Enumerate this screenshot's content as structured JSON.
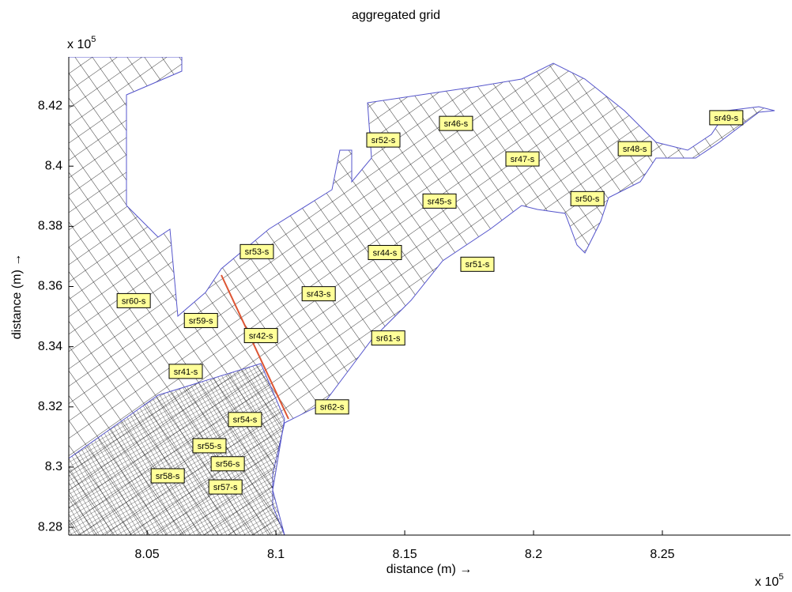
{
  "chart_data": {
    "type": "annotated-grid",
    "title": "aggregated grid",
    "xlabel": "distance (m) →",
    "ylabel": "distance (m) →",
    "x_exponent": {
      "base": "x 10",
      "exponent": "5"
    },
    "y_exponent": {
      "base": "x 10",
      "exponent": "5"
    },
    "xlim": [
      8.0196,
      8.2997
    ],
    "xticks": [
      8.05,
      8.1,
      8.15,
      8.2,
      8.25
    ],
    "ylim": [
      8.2774,
      8.4363
    ],
    "yticks": [
      8.28,
      8.3,
      8.32,
      8.34,
      8.36,
      8.38,
      8.4,
      8.42
    ],
    "label_color": "#ffff99",
    "mesh_color": "#5555cc",
    "section_color": "#dd5533",
    "annotations": [
      {
        "text": "sr49-s",
        "x": 8.2748,
        "y": 8.4161
      },
      {
        "text": "sr46-s",
        "x": 8.1699,
        "y": 8.4142
      },
      {
        "text": "sr52-s",
        "x": 8.1417,
        "y": 8.4087
      },
      {
        "text": "sr48-s",
        "x": 8.2393,
        "y": 8.4058
      },
      {
        "text": "sr47-s",
        "x": 8.1957,
        "y": 8.4024
      },
      {
        "text": "sr45-s",
        "x": 8.1635,
        "y": 8.3884
      },
      {
        "text": "sr50-s",
        "x": 8.2209,
        "y": 8.3892
      },
      {
        "text": "sr53-s",
        "x": 8.0926,
        "y": 8.3716
      },
      {
        "text": "sr44-s",
        "x": 8.1423,
        "y": 8.3713
      },
      {
        "text": "sr51-s",
        "x": 8.1782,
        "y": 8.3674
      },
      {
        "text": "sr43-s",
        "x": 8.1166,
        "y": 8.3576
      },
      {
        "text": "sr60-s",
        "x": 8.0448,
        "y": 8.3553
      },
      {
        "text": "sr59-s",
        "x": 8.0709,
        "y": 8.3487
      },
      {
        "text": "sr42-s",
        "x": 8.0942,
        "y": 8.3437
      },
      {
        "text": "sr61-s",
        "x": 8.1436,
        "y": 8.3429
      },
      {
        "text": "sr41-s",
        "x": 8.065,
        "y": 8.3318
      },
      {
        "text": "sr62-s",
        "x": 8.1218,
        "y": 8.32
      },
      {
        "text": "sr54-s",
        "x": 8.088,
        "y": 8.3158
      },
      {
        "text": "sr55-s",
        "x": 8.0742,
        "y": 8.3071
      },
      {
        "text": "sr56-s",
        "x": 8.0813,
        "y": 8.3011
      },
      {
        "text": "sr58-s",
        "x": 8.058,
        "y": 8.2971
      },
      {
        "text": "sr57-s",
        "x": 8.0804,
        "y": 8.2934
      }
    ]
  }
}
